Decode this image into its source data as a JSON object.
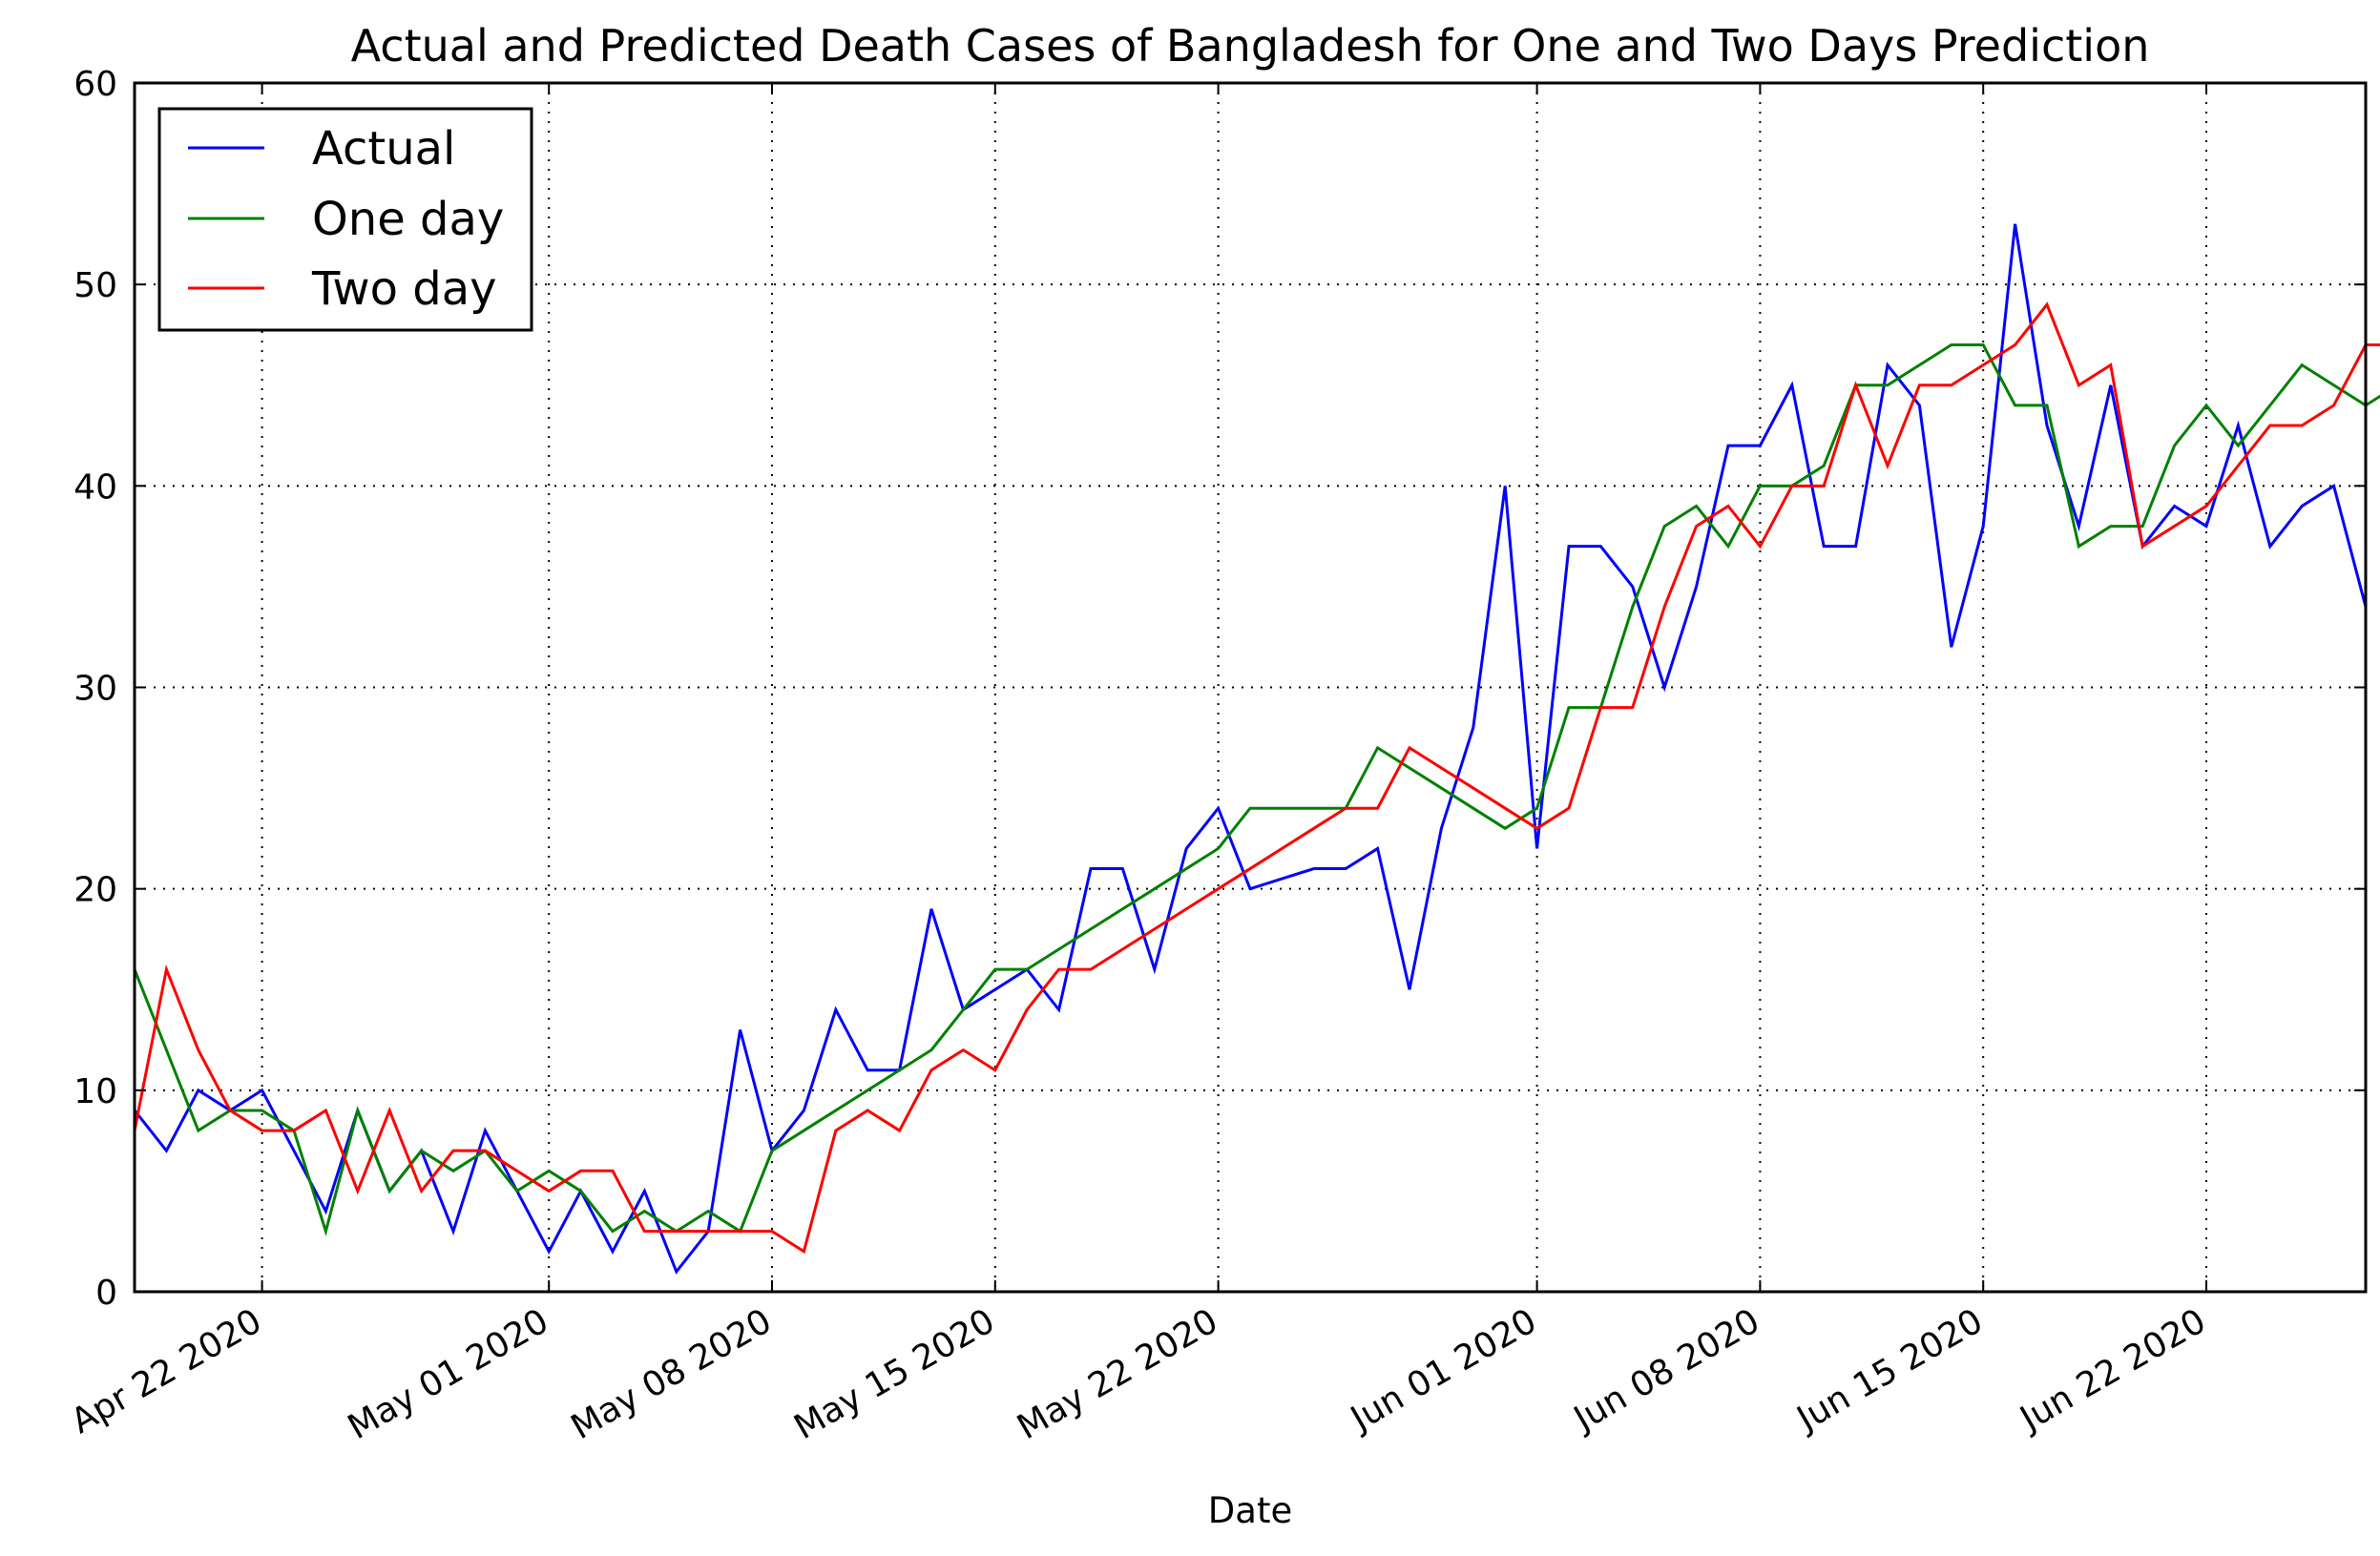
{
  "chart_data": {
    "type": "line",
    "title": "Actual and Predicted Death Cases of Bangladesh for One and Two Days Prediction",
    "xlabel": "Date",
    "ylabel": "",
    "x_start": "2020-04-18",
    "x_range": [
      "2020-04-18",
      "2020-06-27"
    ],
    "ylim": [
      0,
      60
    ],
    "yticks": [
      0,
      10,
      20,
      30,
      40,
      50,
      60
    ],
    "xticks": [
      {
        "date": "2020-04-22",
        "label": "Apr 22 2020"
      },
      {
        "date": "2020-05-01",
        "label": "May 01 2020"
      },
      {
        "date": "2020-05-08",
        "label": "May 08 2020"
      },
      {
        "date": "2020-05-15",
        "label": "May 15 2020"
      },
      {
        "date": "2020-05-22",
        "label": "May 22 2020"
      },
      {
        "date": "2020-06-01",
        "label": "Jun 01 2020"
      },
      {
        "date": "2020-06-08",
        "label": "Jun 08 2020"
      },
      {
        "date": "2020-06-15",
        "label": "Jun 15 2020"
      },
      {
        "date": "2020-06-22",
        "label": "Jun 22 2020"
      }
    ],
    "grid": true,
    "legend_position": "top-left",
    "series": [
      {
        "name": "Actual",
        "color": "#0000ff",
        "values": [
          9,
          7,
          10,
          9,
          10,
          7,
          4,
          9,
          5,
          7,
          3,
          8,
          5,
          2,
          5,
          2,
          5,
          1,
          3,
          13,
          7,
          9,
          14,
          11,
          11,
          19,
          14,
          15,
          16,
          14,
          21,
          21,
          16,
          22,
          24,
          20,
          20.5,
          21,
          21,
          22,
          15,
          23,
          28,
          40,
          22,
          37,
          37,
          35,
          30,
          35,
          42,
          42,
          45,
          37,
          37,
          46,
          44,
          32,
          38,
          53,
          43,
          38,
          45,
          37,
          39,
          38,
          43,
          37,
          39,
          40,
          34
        ]
      },
      {
        "name": "One day",
        "color": "#008000",
        "values": [
          16,
          12,
          8,
          9,
          9,
          8,
          3,
          9,
          5,
          7,
          6,
          7,
          5,
          6,
          5,
          3,
          4,
          3,
          4,
          3,
          7,
          8,
          9,
          10,
          11,
          12,
          14,
          16,
          16,
          17,
          18,
          19,
          20,
          21,
          22,
          24,
          24,
          24,
          24,
          27,
          26,
          25,
          24,
          23,
          24,
          29,
          29,
          34,
          38,
          39,
          37,
          40,
          40,
          41,
          45,
          45,
          46,
          47,
          47,
          44,
          44,
          37,
          38,
          38,
          42,
          44,
          42,
          44,
          46,
          45,
          44,
          45
        ]
      },
      {
        "name": "Two day",
        "color": "#ff0000",
        "values": [
          8,
          16,
          12,
          9,
          8,
          8,
          9,
          5,
          9,
          5,
          7,
          7,
          6,
          5,
          6,
          6,
          3,
          3,
          3,
          3,
          3,
          2,
          8,
          9,
          8,
          11,
          12,
          11,
          14,
          16,
          16,
          17,
          18,
          19,
          20,
          21,
          22,
          23,
          24,
          24,
          27,
          26,
          25,
          24,
          23,
          24,
          29,
          29,
          34,
          38,
          39,
          37,
          40,
          40,
          45,
          41,
          45,
          45,
          46,
          47,
          49,
          45,
          46,
          37,
          38,
          39,
          41,
          43,
          43,
          44,
          47,
          47,
          47
        ]
      }
    ]
  }
}
